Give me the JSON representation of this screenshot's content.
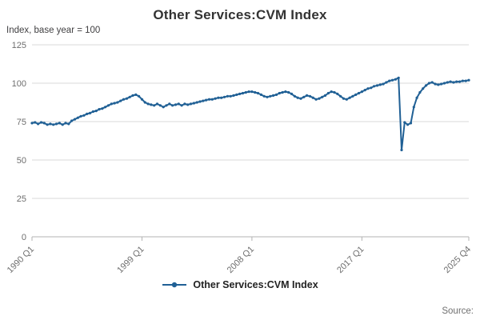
{
  "page": {
    "title": "Other Services:CVM Index",
    "source_label": "Source:"
  },
  "legend": {
    "label": "Other Services:CVM Index"
  },
  "chart_data": {
    "type": "line",
    "title": "Other Services:CVM Index",
    "ylabel": "Index, base year = 100",
    "series_name": "Other Services:CVM Index",
    "frequency": "quarterly",
    "x_start": "1990 Q1",
    "x_end": "2025 Q4",
    "ylim": [
      0,
      125
    ],
    "y_ticks": [
      0,
      25,
      50,
      75,
      100,
      125
    ],
    "x_ticks": [
      {
        "label": "1990 Q1",
        "index": 0
      },
      {
        "label": "1999 Q1",
        "index": 36
      },
      {
        "label": "2008 Q1",
        "index": 72
      },
      {
        "label": "2017 Q1",
        "index": 108
      },
      {
        "label": "2025 Q4",
        "index": 143
      }
    ],
    "line_color": "#206095",
    "grid_color": "#d9d9d9",
    "axis_color": "#b3b3b3",
    "tick_text_color": "#6e6e6e",
    "grid": true,
    "legend_position": "bottom",
    "values": [
      74,
      74.5,
      73.5,
      74.5,
      74,
      73,
      73.5,
      73,
      73.5,
      74,
      73,
      74,
      73.5,
      75.5,
      76.5,
      77.5,
      78.5,
      79,
      80,
      80.5,
      81.5,
      82,
      83,
      83.5,
      84.5,
      85.5,
      86.5,
      87,
      87.5,
      88.5,
      89.5,
      90,
      91,
      92,
      92.5,
      91.5,
      89.5,
      87.5,
      86.5,
      86,
      85.5,
      86.5,
      85.5,
      84.5,
      85.5,
      86.5,
      85.5,
      86,
      86.5,
      85.5,
      86.5,
      86,
      86.5,
      87,
      87.5,
      88,
      88.5,
      89,
      89.5,
      89.5,
      90,
      90.5,
      90.5,
      91,
      91.5,
      91.5,
      92,
      92.5,
      93,
      93.5,
      94,
      94.5,
      94.5,
      94,
      93.5,
      92.5,
      91.5,
      91,
      91.5,
      92,
      92.5,
      93.5,
      94,
      94.5,
      94,
      93,
      91.5,
      90.5,
      90,
      91,
      92,
      91.5,
      90.5,
      89.5,
      90,
      91,
      92,
      93.5,
      94.5,
      94,
      93,
      91.5,
      90,
      89.5,
      90.5,
      91.5,
      92.5,
      93.5,
      94.5,
      95.5,
      96.5,
      97,
      98,
      98.5,
      99,
      99.5,
      100.5,
      101.5,
      102,
      102.5,
      103.5,
      56.5,
      74.5,
      73,
      74,
      84.5,
      90.5,
      94,
      96.5,
      98.5,
      100,
      100.5,
      99.5,
      99,
      99.5,
      100,
      100.5,
      101,
      100.5,
      101,
      101,
      101.5,
      101.5,
      102
    ]
  }
}
